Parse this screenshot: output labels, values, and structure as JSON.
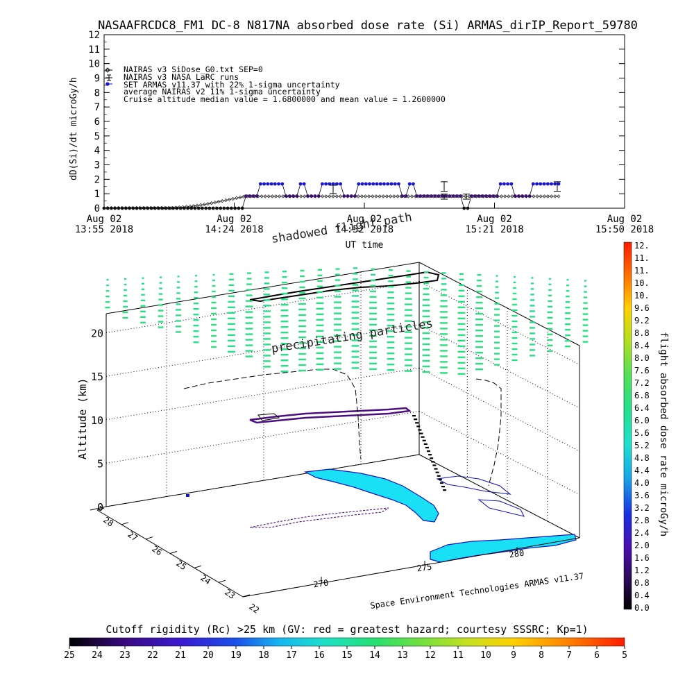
{
  "chart_data": [
    {
      "type": "scatter",
      "title": "NASAAFRCDC8_FM1 DC-8   N817NA absorbed dose rate (Si) ARMAS_dirIP_Report_59780",
      "ylabel": "dD(Si)/dt microGy/h",
      "xlabel": "UT time",
      "ylim": [
        0,
        12
      ],
      "yticks": [
        "0",
        "1",
        "2",
        "3",
        "4",
        "5",
        "6",
        "7",
        "8",
        "9",
        "10",
        "11",
        "12"
      ],
      "xticks": [
        {
          "l1": "Aug 02",
          "l2": "13:55 2018"
        },
        {
          "l1": "Aug 02",
          "l2": "14:24 2018"
        },
        {
          "l1": "Aug 02",
          "l2": "14:52 2018"
        },
        {
          "l1": "Aug 02",
          "l2": "15:21 2018"
        },
        {
          "l1": "Aug 02",
          "l2": "15:50 2018"
        }
      ],
      "legend": [
        "NAIRAS v3 SiDose_G0.txt SEP=0",
        "NAIRAS v3 NASA LaRC runs",
        "SET ARMAS v11.37 with 22% 1-sigma uncertainty",
        "average NAIRAS v2 11% 1-sigma uncertainty",
        "Cruise altitude median value = 1.6800000 and mean value = 1.2600000"
      ],
      "series": [
        {
          "name": "SET ARMAS v11.37 with 22% 1-sigma uncertainty",
          "values": [
            0,
            0,
            0,
            0,
            0,
            0,
            0,
            0,
            0,
            0,
            0,
            0,
            0,
            0,
            0,
            0,
            0,
            0,
            0,
            0,
            0,
            0,
            0,
            0,
            0,
            0,
            0,
            0,
            0,
            0,
            0,
            0,
            0,
            0,
            0,
            0,
            0,
            0,
            0,
            0.84,
            0.84,
            0.84,
            0.84,
            1.68,
            1.68,
            1.68,
            1.68,
            1.68,
            1.68,
            1.68,
            0.84,
            0.84,
            0.84,
            0.84,
            1.68,
            1.68,
            0.84,
            0.84,
            0.84,
            0.84,
            1.68,
            1.68,
            1.68,
            1.68,
            1.68,
            1.68,
            0.84,
            0.84,
            0.84,
            0.84,
            1.68,
            1.68,
            1.68,
            1.68,
            1.68,
            1.68,
            1.68,
            1.68,
            1.68,
            1.68,
            1.68,
            1.68,
            0.84,
            0.84,
            1.68,
            1.68,
            0.84,
            0.84,
            0.84,
            0.84,
            0.84,
            0.84,
            0.84,
            0.84,
            0.84,
            0.84,
            0.84,
            0.84,
            0.84,
            0,
            0,
            0.84,
            0.84,
            0.84,
            0.84,
            0.84,
            0.84,
            0.84,
            0.84,
            1.68,
            1.68,
            1.68,
            1.68,
            0.84,
            0.84,
            0.84,
            0.84,
            0.84,
            1.68,
            1.68,
            1.68,
            1.68,
            1.68,
            1.68,
            1.68,
            1.68
          ]
        },
        {
          "name": "NAIRAS v3 SiDose_G0.txt SEP=0",
          "values": [
            0.02,
            0.02,
            0.02,
            0.02,
            0.02,
            0.02,
            0.02,
            0.02,
            0.02,
            0.02,
            0.02,
            0.02,
            0.02,
            0.02,
            0.02,
            0.02,
            0.02,
            0.02,
            0.02,
            0.02,
            0.04,
            0.06,
            0.08,
            0.1,
            0.12,
            0.15,
            0.18,
            0.22,
            0.26,
            0.3,
            0.35,
            0.4,
            0.45,
            0.5,
            0.55,
            0.6,
            0.65,
            0.7,
            0.75,
            0.8,
            0.82,
            0.82,
            0.82,
            0.82,
            0.82,
            0.82,
            0.82,
            0.82,
            0.82,
            0.82,
            0.82,
            0.82,
            0.82,
            0.82,
            0.82,
            0.82,
            0.82,
            0.82,
            0.82,
            0.82,
            0.82,
            0.82,
            0.82,
            0.82,
            0.82,
            0.82,
            0.82,
            0.82,
            0.82,
            0.82,
            0.82,
            0.82,
            0.82,
            0.82,
            0.82,
            0.82,
            0.82,
            0.82,
            0.82,
            0.82,
            0.82,
            0.82,
            0.82,
            0.82,
            0.82,
            0.82,
            0.82,
            0.82,
            0.82,
            0.82,
            0.82,
            0.82,
            0.82,
            0.82,
            0.82,
            0.82,
            0.82,
            0.82,
            0.82,
            0.82,
            0.82,
            0.82,
            0.82,
            0.82,
            0.82,
            0.82,
            0.82,
            0.82,
            0.82,
            0.82,
            0.82,
            0.82,
            0.82,
            0.82,
            0.82,
            0.82,
            0.82,
            0.82,
            0.82,
            0.82,
            0.82,
            0.82,
            0.82,
            0.82,
            0.82,
            0.82,
            0.82,
            0.82
          ]
        },
        {
          "name": "average NAIRAS v2 11% 1-sigma uncertainty",
          "values": [
            1.3,
            1.5,
            0.8,
            0.8,
            1.5
          ]
        }
      ]
    },
    {
      "type": "scatter",
      "zlabel": "Altitude (km)",
      "zticks": [
        "0",
        "5",
        "10",
        "15",
        "20"
      ],
      "lat_ticks": [
        "28",
        "27",
        "26",
        "25",
        "24",
        "23",
        "22"
      ],
      "lon_ticks": [
        "270",
        "275",
        "280"
      ],
      "annotations": [
        "shadowed flight path",
        "precipitating particles"
      ],
      "credit": "Space Environment Technologies ARMAS v11.37"
    }
  ],
  "colorbar_right": {
    "title": "flight absorbed dose rate microGy/h",
    "ticks": [
      "12.",
      "11.",
      "11.",
      "10.",
      "10.",
      "9.6",
      "9.2",
      "8.8",
      "8.4",
      "8.0",
      "7.6",
      "7.2",
      "6.8",
      "6.4",
      "6.0",
      "5.6",
      "5.2",
      "4.8",
      "4.4",
      "4.0",
      "3.6",
      "3.2",
      "2.8",
      "2.4",
      "2.0",
      "1.6",
      "1.2",
      "0.8",
      "0.4",
      "0.0"
    ]
  },
  "colorbar_bottom": {
    "title": "Cutoff rigidity (Rc) >25 km (GV: red = greatest hazard; courtesy SSSRC; Kp=1)",
    "ticks": [
      "25",
      "24",
      "23",
      "22",
      "21",
      "20",
      "19",
      "18",
      "17",
      "16",
      "15",
      "14",
      "13",
      "12",
      "11",
      "10",
      "9",
      "8",
      "7",
      "6",
      "5"
    ]
  },
  "colors": {
    "armas": "#1515d8",
    "nairas": "#000000",
    "rc_band": "#27e083",
    "land": "#19e0f5",
    "coast": "#1313c4",
    "track_alt": "#4b0f82"
  }
}
